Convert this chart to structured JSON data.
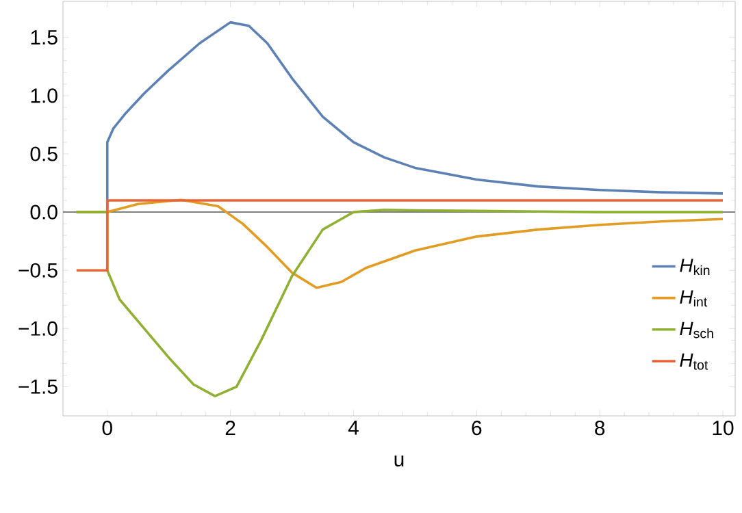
{
  "chart_data": {
    "type": "line",
    "xlabel": "u",
    "xlim": [
      -0.72,
      10.2
    ],
    "ylim": [
      -1.75,
      1.81
    ],
    "xticks": [
      0,
      2,
      4,
      6,
      8,
      10
    ],
    "yticks": [
      {
        "value": -1.5,
        "label": "−1.5"
      },
      {
        "value": -1,
        "label": "−1.0"
      },
      {
        "value": -0.5,
        "label": "−0.5"
      },
      {
        "value": 0,
        "label": "0.0"
      },
      {
        "value": 0.5,
        "label": "0.5"
      },
      {
        "value": 1,
        "label": "1.0"
      },
      {
        "value": 1.5,
        "label": "1.5"
      }
    ],
    "legend": "bottom right",
    "grid": false,
    "marker": "none",
    "line_style": "solid",
    "ref_lines": [
      {
        "axis": "y",
        "value": 0,
        "color": "#808080"
      }
    ],
    "series": [
      {
        "name": "*H*$_{kin}$",
        "color": "#5e81b5",
        "x": [
          -0.5,
          0,
          0,
          0.1,
          0.3,
          0.6,
          1.0,
          1.5,
          2.0,
          2.3,
          2.6,
          3.0,
          3.5,
          4.0,
          4.5,
          5,
          6,
          7,
          8,
          9,
          10
        ],
        "values": [
          0,
          0,
          0.6,
          0.72,
          0.85,
          1.02,
          1.22,
          1.45,
          1.63,
          1.6,
          1.45,
          1.15,
          0.82,
          0.6,
          0.47,
          0.38,
          0.28,
          0.22,
          0.19,
          0.17,
          0.16
        ]
      },
      {
        "name": "*H*$_{int}$",
        "color": "#e19c24",
        "x": [
          -0.5,
          0,
          0.5,
          1.2,
          1.8,
          2.2,
          2.6,
          3.0,
          3.4,
          3.8,
          4.2,
          5,
          6,
          7,
          8,
          9,
          10
        ],
        "values": [
          0,
          0,
          0.07,
          0.105,
          0.05,
          -0.1,
          -0.3,
          -0.52,
          -0.65,
          -0.6,
          -0.48,
          -0.33,
          -0.21,
          -0.15,
          -0.11,
          -0.08,
          -0.06
        ]
      },
      {
        "name": "*H*$_{sch}$",
        "color": "#8fb032",
        "x": [
          -0.5,
          0,
          0,
          0.2,
          0.6,
          1.0,
          1.4,
          1.75,
          2.1,
          2.5,
          3.0,
          3.5,
          4.0,
          4.5,
          5,
          6,
          8,
          10
        ],
        "values": [
          0,
          0,
          -0.5,
          -0.75,
          -1.0,
          -1.25,
          -1.48,
          -1.58,
          -1.5,
          -1.1,
          -0.55,
          -0.15,
          0.0,
          0.02,
          0.015,
          0.01,
          0,
          0
        ]
      },
      {
        "name": "*H*$_{tot}$",
        "color": "#eb6235",
        "x": [
          -0.5,
          0,
          0,
          10
        ],
        "values": [
          -0.5,
          -0.5,
          0.1,
          0.1
        ]
      }
    ]
  }
}
